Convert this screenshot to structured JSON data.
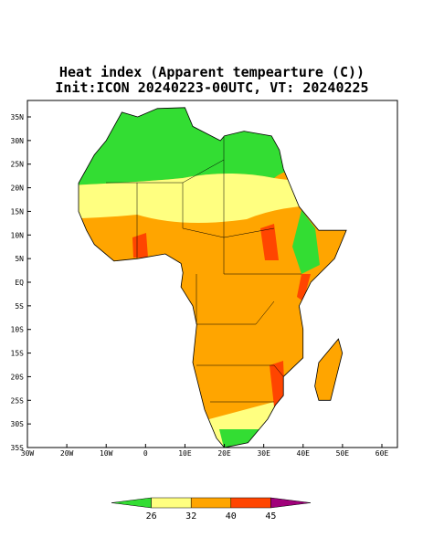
{
  "header": {
    "title": "Heat index (Apparent tempearture (C))",
    "subtitle": "Init:ICON 20240223-00UTC, VT: 20240225"
  },
  "map": {
    "lat_labels": [
      "35N",
      "30N",
      "25N",
      "20N",
      "15N",
      "10N",
      "5N",
      "EQ",
      "5S",
      "10S",
      "15S",
      "20S",
      "25S",
      "30S",
      "35S"
    ],
    "lon_labels": [
      "30W",
      "20W",
      "10W",
      "0",
      "10E",
      "20E",
      "30E",
      "40E",
      "50E",
      "60E"
    ]
  },
  "colorbar": {
    "labels": [
      "26",
      "32",
      "40",
      "45"
    ],
    "colors": [
      "#33dd33",
      "#ffff80",
      "#ffa500",
      "#ff4500",
      "#a0007a"
    ]
  }
}
